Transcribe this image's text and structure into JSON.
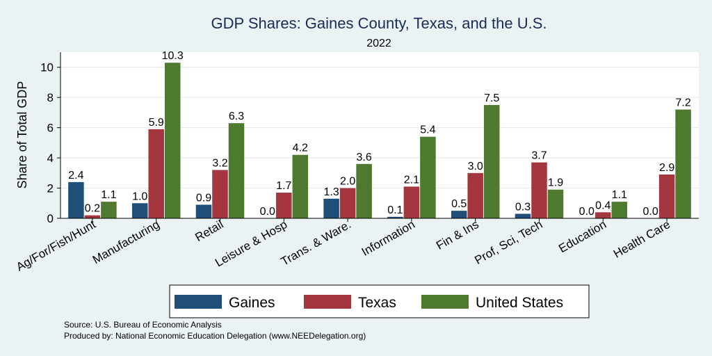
{
  "chart_data": {
    "type": "bar",
    "title": "GDP Shares: Gaines County, Texas, and the U.S.",
    "subtitle": "2022",
    "ylabel": "Share of Total GDP",
    "xlabel": "",
    "ylim": [
      0,
      11
    ],
    "yticks": [
      0,
      2,
      4,
      6,
      8,
      10
    ],
    "grid": true,
    "legend_position": "bottom",
    "categories": [
      "Ag/For/Fish/Hunt",
      "Manufacturing",
      "Retail",
      "Leisure & Hosp",
      "Trans. & Ware.",
      "Information",
      "Fin & Ins",
      "Prof, Sci, Tech",
      "Education",
      "Health Care"
    ],
    "series": [
      {
        "name": "Gaines",
        "color": "#1f4e79",
        "values": [
          2.4,
          1.0,
          0.9,
          0.0,
          1.3,
          0.1,
          0.5,
          0.3,
          0.0,
          0.0
        ],
        "labels": [
          "2.4",
          "1.0",
          "0.9",
          "0.0",
          "1.3",
          "0.1",
          "0.5",
          "0.3",
          "0.0",
          "0.0"
        ]
      },
      {
        "name": "Texas",
        "color": "#a3363e",
        "values": [
          0.2,
          5.9,
          3.2,
          1.7,
          2.0,
          2.1,
          3.0,
          3.7,
          0.4,
          2.9
        ],
        "labels": [
          "0.2",
          "5.9",
          "3.2",
          "1.7",
          "2.0",
          "2.1",
          "3.0",
          "3.7",
          "0.4",
          "2.9"
        ]
      },
      {
        "name": "United States",
        "color": "#4e7a2f",
        "values": [
          1.1,
          10.3,
          6.3,
          4.2,
          3.6,
          5.4,
          7.5,
          1.9,
          1.1,
          7.2
        ],
        "labels": [
          "1.1",
          "10.3",
          "6.3",
          "4.2",
          "3.6",
          "5.4",
          "7.5",
          "1.9",
          "1.1",
          "7.2"
        ]
      }
    ],
    "notes": [
      "Source: U.S. Bureau of Economic Analysis",
      "Produced by: National Economic Education Delegation (www.NEEDelegation.org)"
    ]
  }
}
